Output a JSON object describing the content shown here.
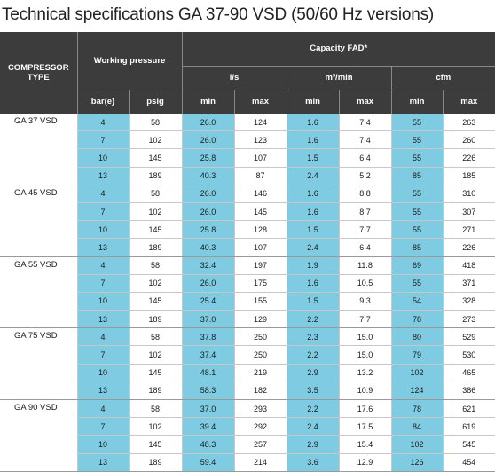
{
  "title": "Technical specifications GA 37-90 VSD (50/60 Hz versions)",
  "headers": {
    "compressor_type": "COMPRESSOR TYPE",
    "working_pressure": "Working pressure",
    "capacity": "Capacity FAD*",
    "ls": "l/s",
    "m3min": "m³/min",
    "cfm": "cfm",
    "bar": "bar(e)",
    "psig": "psig",
    "min": "min",
    "max": "max"
  },
  "models": [
    {
      "name": "GA 37 VSD",
      "rows": [
        [
          "4",
          "58",
          "26.0",
          "124",
          "1.6",
          "7.4",
          "55",
          "263"
        ],
        [
          "7",
          "102",
          "26.0",
          "123",
          "1.6",
          "7.4",
          "55",
          "260"
        ],
        [
          "10",
          "145",
          "25.8",
          "107",
          "1.5",
          "6.4",
          "55",
          "226"
        ],
        [
          "13",
          "189",
          "40.3",
          "87",
          "2.4",
          "5.2",
          "85",
          "185"
        ]
      ]
    },
    {
      "name": "GA 45 VSD",
      "rows": [
        [
          "4",
          "58",
          "26.0",
          "146",
          "1.6",
          "8.8",
          "55",
          "310"
        ],
        [
          "7",
          "102",
          "26.0",
          "145",
          "1.6",
          "8.7",
          "55",
          "307"
        ],
        [
          "10",
          "145",
          "25.8",
          "128",
          "1.5",
          "7.7",
          "55",
          "271"
        ],
        [
          "13",
          "189",
          "40.3",
          "107",
          "2.4",
          "6.4",
          "85",
          "226"
        ]
      ]
    },
    {
      "name": "GA 55 VSD",
      "rows": [
        [
          "4",
          "58",
          "32.4",
          "197",
          "1.9",
          "11.8",
          "69",
          "418"
        ],
        [
          "7",
          "102",
          "26.0",
          "175",
          "1.6",
          "10.5",
          "55",
          "371"
        ],
        [
          "10",
          "145",
          "25.4",
          "155",
          "1.5",
          "9.3",
          "54",
          "328"
        ],
        [
          "13",
          "189",
          "37.0",
          "129",
          "2.2",
          "7.7",
          "78",
          "273"
        ]
      ]
    },
    {
      "name": "GA 75 VSD",
      "rows": [
        [
          "4",
          "58",
          "37.8",
          "250",
          "2.3",
          "15.0",
          "80",
          "529"
        ],
        [
          "7",
          "102",
          "37.4",
          "250",
          "2.2",
          "15.0",
          "79",
          "530"
        ],
        [
          "10",
          "145",
          "48.1",
          "219",
          "2.9",
          "13.2",
          "102",
          "465"
        ],
        [
          "13",
          "189",
          "58.3",
          "182",
          "3.5",
          "10.9",
          "124",
          "386"
        ]
      ]
    },
    {
      "name": "GA 90 VSD",
      "rows": [
        [
          "4",
          "58",
          "37.0",
          "293",
          "2.2",
          "17.6",
          "78",
          "621"
        ],
        [
          "7",
          "102",
          "39.4",
          "292",
          "2.4",
          "17.5",
          "84",
          "619"
        ],
        [
          "10",
          "145",
          "48.3",
          "257",
          "2.9",
          "15.4",
          "102",
          "545"
        ],
        [
          "13",
          "189",
          "59.4",
          "214",
          "3.6",
          "12.9",
          "126",
          "454"
        ]
      ]
    }
  ]
}
